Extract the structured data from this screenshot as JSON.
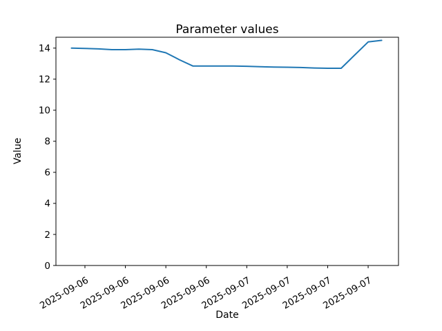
{
  "page": {
    "background": "#ffffff"
  },
  "chart_data": {
    "type": "line",
    "title": "Parameter values",
    "xlabel": "Date",
    "ylabel": "Value",
    "grid": false,
    "legend_position": "none",
    "line_color": "#1f77b4",
    "axis_color": "#000000",
    "y_ticks": [
      0,
      2,
      4,
      6,
      8,
      10,
      12,
      14
    ],
    "ylim": [
      0,
      14.7
    ],
    "x_tick_labels": [
      "2025-09-06",
      "2025-09-06",
      "2025-09-06",
      "2025-09-06",
      "2025-09-07",
      "2025-09-07",
      "2025-09-07",
      "2025-09-07"
    ],
    "x_tick_hours": [
      0,
      6,
      12,
      18,
      24,
      30,
      36,
      42
    ],
    "x_tick_label_rotation_deg": 30,
    "xlim_hours": [
      -4.3,
      46.5
    ],
    "series": [
      {
        "name": "parameter-values",
        "x_hours": [
          -2,
          0,
          2,
          4,
          6,
          8,
          10,
          12,
          14,
          16,
          18,
          20,
          22,
          24,
          26,
          28,
          30,
          32,
          34,
          36,
          38,
          40,
          42,
          44
        ],
        "values": [
          14.0,
          13.98,
          13.95,
          13.9,
          13.9,
          13.93,
          13.9,
          13.7,
          13.25,
          12.85,
          12.85,
          12.85,
          12.85,
          12.83,
          12.8,
          12.78,
          12.77,
          12.75,
          12.72,
          12.7,
          12.7,
          13.55,
          14.4,
          14.5
        ]
      }
    ]
  }
}
